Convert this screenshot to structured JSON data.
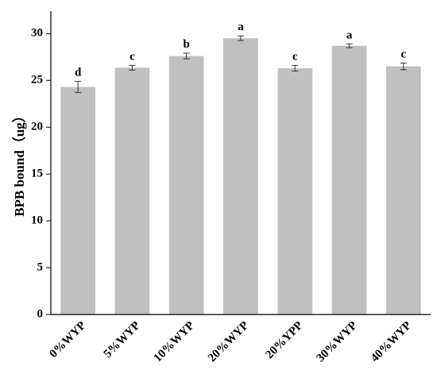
{
  "chart_data": {
    "type": "bar",
    "y_label": "BPB bound（ug）",
    "categories": [
      "0%WYP",
      "5%WYP",
      "10%WYP",
      "20%WYP",
      "20%YPP",
      "30%WYP",
      "40%WYP"
    ],
    "values": [
      24.3,
      26.35,
      27.6,
      29.5,
      26.3,
      28.7,
      26.5
    ],
    "errors": [
      0.6,
      0.25,
      0.3,
      0.25,
      0.3,
      0.2,
      0.35
    ],
    "labels": [
      "d",
      "c",
      "b",
      "a",
      "c",
      "a",
      "c"
    ],
    "color": "#c0c0c0",
    "ylim": [
      0,
      32.4
    ],
    "yticks": [
      0,
      5,
      10,
      15,
      20,
      25,
      30
    ],
    "grid": false
  }
}
